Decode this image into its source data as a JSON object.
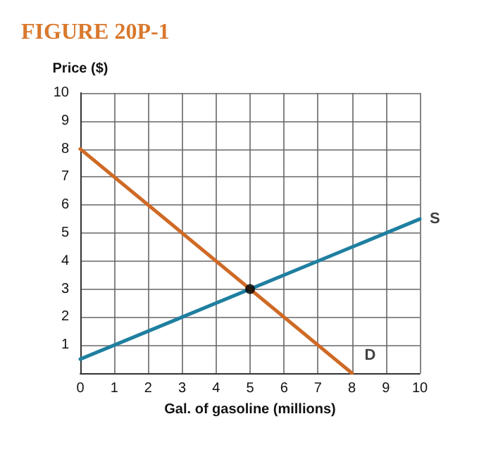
{
  "chart_data": {
    "type": "line",
    "title": "FIGURE 20P-1",
    "xlabel": "Gal. of gasoline (millions)",
    "ylabel": "Price ($)",
    "xlim": [
      0,
      10
    ],
    "xticks": [
      0,
      1,
      2,
      3,
      4,
      5,
      6,
      7,
      8,
      9,
      10
    ],
    "ylim": [
      0,
      10
    ],
    "yticks": [
      1,
      2,
      3,
      4,
      5,
      6,
      7,
      8,
      9,
      10
    ],
    "grid": true,
    "series": [
      {
        "color": "#1f7fa0",
        "x": [
          0,
          10
        ],
        "values": [
          0.5,
          5.5
        ],
        "marker": "none"
      },
      {
        "color": "#cf6a26",
        "x": [
          0,
          8
        ],
        "values": [
          8,
          0
        ],
        "marker": "none"
      },
      {
        "type": "scatter",
        "color": "#000000",
        "x": [
          5
        ],
        "values": [
          3
        ],
        "marker": "circle"
      }
    ],
    "annotations": [
      {
        "text": "S",
        "x": 10,
        "y": 5.5
      },
      {
        "text": "D",
        "x": 8,
        "y": 0
      }
    ]
  }
}
